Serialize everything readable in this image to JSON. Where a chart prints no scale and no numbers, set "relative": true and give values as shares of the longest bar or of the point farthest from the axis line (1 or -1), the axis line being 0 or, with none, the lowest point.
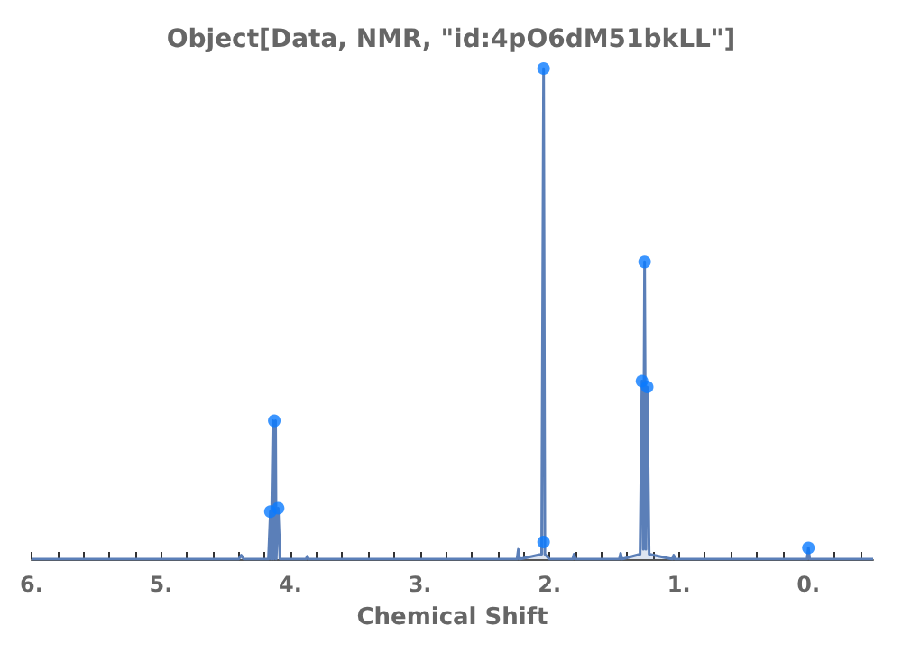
{
  "chart_data": {
    "type": "area",
    "title": "Object[Data, NMR, \"id:4pO6dM51bkLL\"]",
    "xlabel": "Chemical Shift",
    "relative": true,
    "grid": false,
    "xlim": [
      6,
      -0.5
    ],
    "xticks": [
      {
        "value": 6,
        "label": "6."
      },
      {
        "value": 5.8,
        "label": null
      },
      {
        "value": 5.6,
        "label": null
      },
      {
        "value": 5.4,
        "label": null
      },
      {
        "value": 5.2,
        "label": null
      },
      {
        "value": 5,
        "label": "5."
      },
      {
        "value": 4.8,
        "label": null
      },
      {
        "value": 4.6,
        "label": null
      },
      {
        "value": 4.4,
        "label": null
      },
      {
        "value": 4.2,
        "label": null
      },
      {
        "value": 4,
        "label": "4."
      },
      {
        "value": 3.8,
        "label": null
      },
      {
        "value": 3.6,
        "label": null
      },
      {
        "value": 3.4,
        "label": null
      },
      {
        "value": 3.2,
        "label": null
      },
      {
        "value": 3,
        "label": "3."
      },
      {
        "value": 2.8,
        "label": null
      },
      {
        "value": 2.6,
        "label": null
      },
      {
        "value": 2.4,
        "label": null
      },
      {
        "value": 2.2,
        "label": null
      },
      {
        "value": 2,
        "label": "2."
      },
      {
        "value": 1.8,
        "label": null
      },
      {
        "value": 1.6,
        "label": null
      },
      {
        "value": 1.4,
        "label": null
      },
      {
        "value": 1.2,
        "label": null
      },
      {
        "value": 1,
        "label": "1."
      },
      {
        "value": 0.8,
        "label": null
      },
      {
        "value": 0.6,
        "label": null
      },
      {
        "value": 0.4,
        "label": null
      },
      {
        "value": 0.2,
        "label": null
      },
      {
        "value": 0,
        "label": "0."
      },
      {
        "value": -0.2,
        "label": null
      },
      {
        "value": -0.4,
        "label": null
      }
    ],
    "series": [
      {
        "color": "#5b7fb8",
        "x": [
          6,
          4.4,
          4.38,
          4.36,
          4.17,
          4.155,
          4.15,
          4.135,
          4.13,
          4.115,
          4.11,
          4.095,
          4.08,
          3.88,
          3.87,
          3.86,
          2.25,
          2.24,
          2.23,
          2.06,
          2.045,
          2.035,
          2.0,
          1.82,
          1.81,
          1.8,
          1.46,
          1.45,
          1.44,
          1.3,
          1.285,
          1.275,
          1.265,
          1.255,
          1.245,
          1.23,
          1.05,
          1.04,
          1.03,
          0.01,
          0,
          -0.01,
          -0.5
        ],
        "values": [
          0,
          0,
          0.008,
          0,
          0,
          0.097,
          0,
          0.282,
          0,
          0.282,
          0,
          0.104,
          0,
          0,
          0.006,
          0,
          0,
          0.02,
          0,
          0.01,
          1,
          0.01,
          0,
          0,
          0.01,
          0,
          0,
          0.012,
          0,
          0.01,
          0.363,
          0.02,
          0.606,
          0.02,
          0.351,
          0.01,
          0,
          0.008,
          0,
          0,
          0.023,
          0,
          0
        ]
      },
      {
        "type": "scatter",
        "marker": "circle",
        "color": "#0a7bff",
        "x": [
          4.155,
          4.125,
          4.095,
          2.045,
          2.045,
          1.285,
          1.265,
          1.245,
          0
        ],
        "values": [
          0.097,
          0.282,
          0.104,
          1,
          0.035,
          0.363,
          0.606,
          0.351,
          0.023
        ]
      }
    ]
  }
}
